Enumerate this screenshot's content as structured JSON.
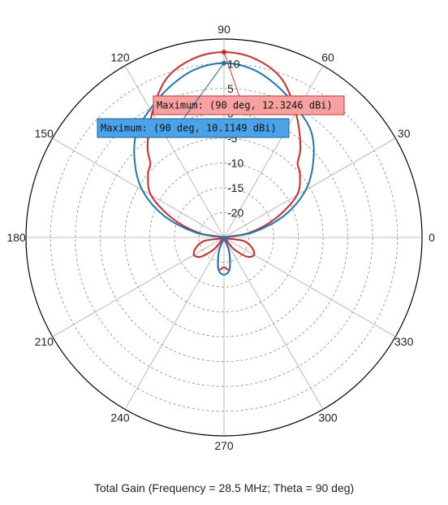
{
  "chart_data": {
    "type": "polar",
    "title": "Total Gain (Frequency = 28.5 MHz; Theta = 90 deg)",
    "angle_labels": [
      "0",
      "30",
      "60",
      "90",
      "120",
      "150",
      "180",
      "210",
      "240",
      "270",
      "300",
      "330"
    ],
    "magnitude_labels": [
      "10",
      "5",
      "0",
      "-5",
      "-10",
      "-15",
      "-20"
    ],
    "magnitude_range": [
      -25,
      12.5
    ],
    "angle_unit": "deg",
    "series": [
      {
        "color": "#d62728",
        "angles": [
          0,
          10,
          20,
          30,
          40,
          45,
          50,
          60,
          70,
          80,
          90,
          100,
          110,
          120,
          130,
          135,
          140,
          150,
          160,
          170,
          180,
          190,
          200,
          210,
          220,
          230,
          240,
          250,
          260,
          270,
          280,
          290,
          300,
          310,
          320,
          330,
          340,
          350
        ],
        "gains": [
          -25,
          -20,
          -14,
          -8,
          -5,
          -4,
          -1,
          4,
          9,
          11.5,
          12.3246,
          11.5,
          9,
          4,
          -1,
          -4,
          -5,
          -8,
          -14,
          -20,
          -25,
          -21,
          -19,
          -18,
          -19,
          -22,
          -25,
          -22,
          -18.5,
          -19,
          -18.5,
          -22,
          -25,
          -22,
          -19,
          -18,
          -19,
          -21
        ],
        "marker": {
          "angle": 90,
          "label": "Maximum: (90 deg, 12.3246 dBi)"
        }
      },
      {
        "color": "#1f77b4",
        "angles": [
          0,
          10,
          20,
          30,
          40,
          50,
          60,
          70,
          80,
          90,
          100,
          110,
          120,
          130,
          140,
          150,
          160,
          170,
          180,
          190,
          200,
          210,
          220,
          230,
          240,
          250,
          260,
          270,
          280,
          290,
          300,
          310,
          320,
          330,
          340,
          350
        ],
        "gains": [
          -25,
          -19,
          -12,
          -6,
          -1.5,
          2.5,
          4.8,
          7.2,
          9.3,
          10.1149,
          9.3,
          7.2,
          4.8,
          2.5,
          -1.5,
          -6,
          -12,
          -19,
          -25,
          -25,
          -25,
          -25,
          -25,
          -25,
          -25,
          -22,
          -18.5,
          -17.5,
          -18.5,
          -22,
          -25,
          -25,
          -25,
          -25,
          -25,
          -25
        ],
        "marker": {
          "angle": 90,
          "label": "Maximum: (90 deg, 10.1149 dBi)"
        }
      }
    ]
  }
}
